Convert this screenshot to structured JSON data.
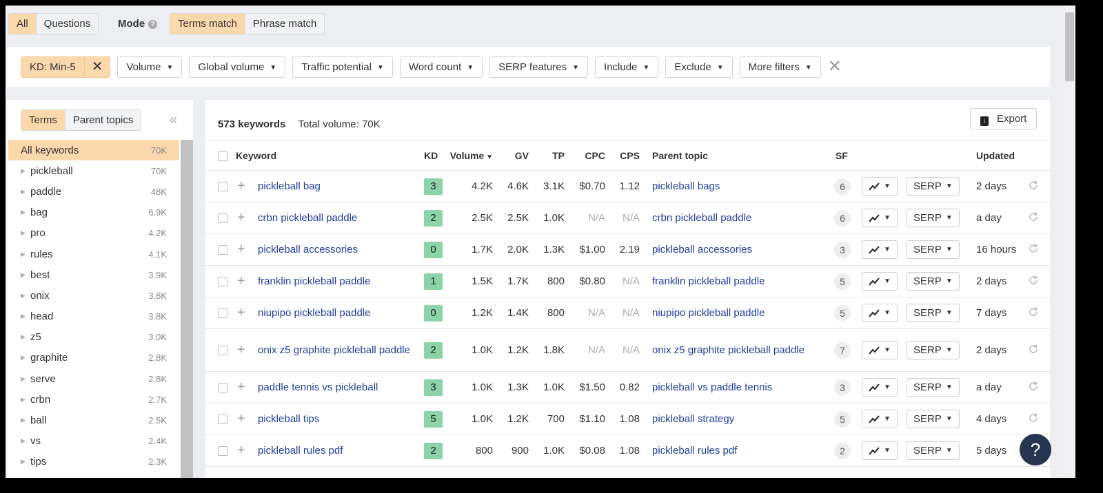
{
  "top": {
    "type_tabs": [
      "All",
      "Questions"
    ],
    "active_type": "All",
    "mode_label": "Mode",
    "mode_tabs": [
      "Terms match",
      "Phrase match"
    ],
    "active_mode": "Terms match"
  },
  "filters": {
    "active": "KD: Min-5",
    "buttons": [
      "Volume",
      "Global volume",
      "Traffic potential",
      "Word count",
      "SERP features",
      "Include",
      "Exclude",
      "More filters"
    ]
  },
  "left": {
    "tabs": [
      "Terms",
      "Parent topics"
    ],
    "items": [
      {
        "name": "All keywords",
        "count": "70K"
      },
      {
        "name": "pickleball",
        "count": "70K"
      },
      {
        "name": "paddle",
        "count": "48K"
      },
      {
        "name": "bag",
        "count": "6.9K"
      },
      {
        "name": "pro",
        "count": "4.2K"
      },
      {
        "name": "rules",
        "count": "4.1K"
      },
      {
        "name": "best",
        "count": "3.9K"
      },
      {
        "name": "onix",
        "count": "3.8K"
      },
      {
        "name": "head",
        "count": "3.8K"
      },
      {
        "name": "z5",
        "count": "3.0K"
      },
      {
        "name": "graphite",
        "count": "2.8K"
      },
      {
        "name": "serve",
        "count": "2.8K"
      },
      {
        "name": "crbn",
        "count": "2.7K"
      },
      {
        "name": "ball",
        "count": "2.5K"
      },
      {
        "name": "vs",
        "count": "2.4K"
      },
      {
        "name": "tips",
        "count": "2.3K"
      }
    ]
  },
  "main": {
    "count": "573 keywords",
    "total": "Total volume: 70K",
    "export": "Export",
    "columns": [
      "Keyword",
      "KD",
      "Volume",
      "GV",
      "TP",
      "CPC",
      "CPS",
      "Parent topic",
      "SF",
      "Updated"
    ],
    "serp_label": "SERP",
    "rows": [
      [
        "pickleball bag",
        "3",
        "4.2K",
        "4.6K",
        "3.1K",
        "$0.70",
        "1.12",
        "pickleball bags",
        "6",
        "2 days"
      ],
      [
        "crbn pickleball paddle",
        "2",
        "2.5K",
        "2.5K",
        "1.0K",
        "N/A",
        "N/A",
        "crbn pickleball paddle",
        "6",
        "a day"
      ],
      [
        "pickleball accessories",
        "0",
        "1.7K",
        "2.0K",
        "1.3K",
        "$1.00",
        "2.19",
        "pickleball accessories",
        "3",
        "16 hours"
      ],
      [
        "franklin pickleball paddle",
        "1",
        "1.5K",
        "1.7K",
        "800",
        "$0.80",
        "N/A",
        "franklin pickleball paddle",
        "5",
        "2 days"
      ],
      [
        "niupipo pickleball paddle",
        "0",
        "1.2K",
        "1.4K",
        "800",
        "N/A",
        "N/A",
        "niupipo pickleball paddle",
        "5",
        "7 days"
      ],
      [
        "onix z5 graphite pickleball paddle",
        "2",
        "1.0K",
        "1.2K",
        "1.8K",
        "N/A",
        "N/A",
        "onix z5 graphite pickleball paddle",
        "7",
        "2 days"
      ],
      [
        "paddle tennis vs pickleball",
        "3",
        "1.0K",
        "1.3K",
        "1.0K",
        "$1.50",
        "0.82",
        "pickleball vs paddle tennis",
        "3",
        "a day"
      ],
      [
        "pickleball tips",
        "5",
        "1.0K",
        "1.2K",
        "700",
        "$1.10",
        "1.08",
        "pickleball strategy",
        "5",
        "4 days"
      ],
      [
        "pickleball rules pdf",
        "2",
        "800",
        "900",
        "1.0K",
        "$0.08",
        "1.08",
        "pickleball rules pdf",
        "2",
        "5 days"
      ]
    ]
  },
  "help": "?"
}
